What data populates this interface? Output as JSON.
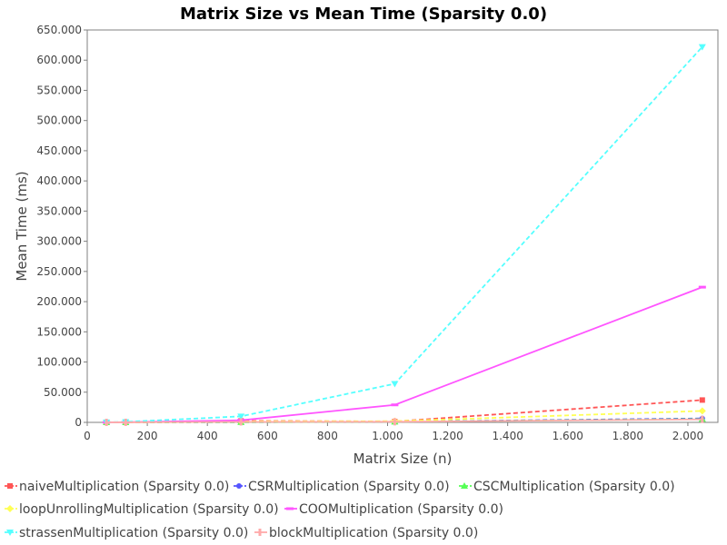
{
  "chart_data": {
    "type": "line",
    "title": "Matrix Size vs Mean Time (Sparsity 0.0)",
    "xlabel": "Matrix Size (n)",
    "ylabel": "Mean Time (ms)",
    "xlim": [
      0,
      2100
    ],
    "ylim": [
      0,
      650000
    ],
    "x_ticks": [
      0,
      200,
      400,
      600,
      800,
      1000,
      1200,
      1400,
      1600,
      1800,
      2000
    ],
    "x_tick_labels": [
      "0",
      "200",
      "400",
      "600",
      "800",
      "1.000",
      "1.200",
      "1.400",
      "1.600",
      "1.800",
      "2.000"
    ],
    "y_ticks": [
      0,
      50000,
      100000,
      150000,
      200000,
      250000,
      300000,
      350000,
      400000,
      450000,
      500000,
      550000,
      600000,
      650000
    ],
    "y_tick_labels": [
      "0",
      "50.000",
      "100.000",
      "150.000",
      "200.000",
      "250.000",
      "300.000",
      "350.000",
      "400.000",
      "450.000",
      "500.000",
      "550.000",
      "600.000",
      "650.000"
    ],
    "grid": false,
    "legend_position": "bottom",
    "x": [
      64,
      128,
      512,
      1024,
      2048
    ],
    "series": [
      {
        "name": "naiveMultiplication (Sparsity 0.0)",
        "color": "#ff5555",
        "marker": "square",
        "dashed": true,
        "values": [
          50,
          300,
          2500,
          1500,
          37000
        ]
      },
      {
        "name": "CSRMultiplication (Sparsity 0.0)",
        "color": "#5555ff",
        "marker": "circle",
        "dashed": true,
        "values": [
          20,
          50,
          300,
          1200,
          6500
        ]
      },
      {
        "name": "CSCMultiplication (Sparsity 0.0)",
        "color": "#55ff55",
        "marker": "triangle-up",
        "dashed": true,
        "values": [
          20,
          40,
          250,
          1000,
          5500
        ]
      },
      {
        "name": "loopUnrollingMultiplication (Sparsity 0.0)",
        "color": "#ffff55",
        "marker": "diamond",
        "dashed": true,
        "values": [
          30,
          200,
          1500,
          2000,
          19000
        ]
      },
      {
        "name": "COOMultiplication (Sparsity 0.0)",
        "color": "#ff55ff",
        "marker": "rect-h",
        "dashed": false,
        "values": [
          50,
          300,
          3500,
          29000,
          224000
        ]
      },
      {
        "name": "strassenMultiplication (Sparsity 0.0)",
        "color": "#55ffff",
        "marker": "triangle-down",
        "dashed": true,
        "values": [
          100,
          800,
          10000,
          64000,
          622000
        ]
      },
      {
        "name": "blockMultiplication (Sparsity 0.0)",
        "color": "#ffaaaa",
        "marker": "rect-v",
        "dashed": false,
        "values": [
          20,
          100,
          800,
          1000,
          5000
        ]
      }
    ]
  }
}
